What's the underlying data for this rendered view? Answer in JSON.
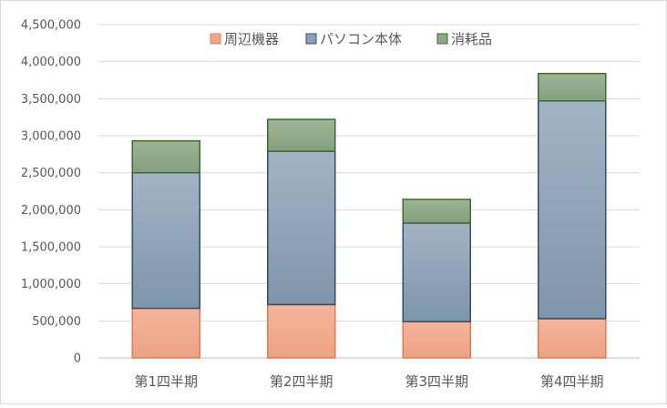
{
  "chart_data": {
    "type": "bar",
    "stacked": true,
    "categories": [
      "第1四半期",
      "第2四半期",
      "第3四半期",
      "第4四半期"
    ],
    "series": [
      {
        "name": "周辺機器",
        "values": [
          670000,
          720000,
          490000,
          530000
        ],
        "color": "#f2a58a",
        "border": "#e07b4f"
      },
      {
        "name": "パソコン本体",
        "values": [
          1830000,
          2070000,
          1330000,
          2940000
        ],
        "color": "#8b9fb5",
        "border": "#2f4f6f"
      },
      {
        "name": "消耗品",
        "values": [
          430000,
          430000,
          320000,
          370000
        ],
        "color": "#8fa889",
        "border": "#3b6e2a"
      }
    ],
    "ylim": [
      0,
      4500000
    ],
    "ytick_step": 500000,
    "ytick_labels": [
      "0",
      "500,000",
      "1,000,000",
      "1,500,000",
      "2,000,000",
      "2,500,000",
      "3,000,000",
      "3,500,000",
      "4,000,000",
      "4,500,000"
    ],
    "grid": true,
    "legend_position": "top-center"
  }
}
